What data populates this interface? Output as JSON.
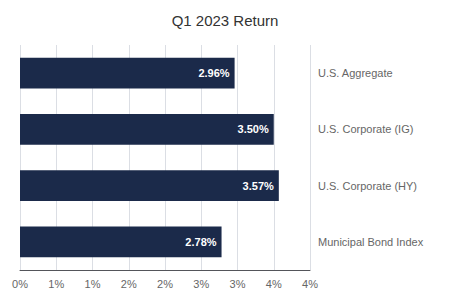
{
  "chart_data": {
    "type": "bar",
    "orientation": "horizontal",
    "title": "Q1 2023 Return",
    "categories": [
      "U.S. Aggregate",
      "U.S. Corporate (IG)",
      "U.S. Corporate (HY)",
      "Municipal Bond Index"
    ],
    "values": [
      2.96,
      3.5,
      3.57,
      2.78
    ],
    "value_labels": [
      "2.96%",
      "3.50%",
      "3.57%",
      "2.78%"
    ],
    "data_labels": true,
    "color": "#1b2a4a",
    "xlim": [
      0,
      4.0
    ],
    "xticks": [
      {
        "value": 0,
        "label": "0%"
      },
      {
        "value": 0.5,
        "label": "1%"
      },
      {
        "value": 1.0,
        "label": "1%"
      },
      {
        "value": 1.5,
        "label": "2%"
      },
      {
        "value": 2.0,
        "label": "2%"
      },
      {
        "value": 2.5,
        "label": "3%"
      },
      {
        "value": 3.0,
        "label": "3%"
      },
      {
        "value": 3.5,
        "label": "4%"
      },
      {
        "value": 4.0,
        "label": "4%"
      }
    ],
    "grid": true
  }
}
